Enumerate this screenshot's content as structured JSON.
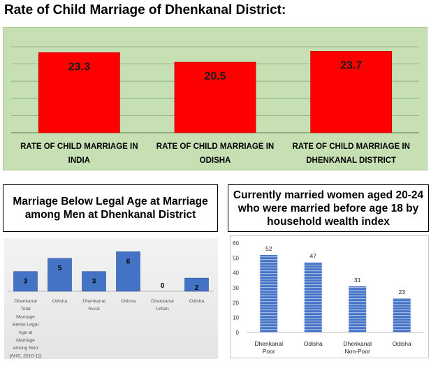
{
  "page": {
    "title": "Rate of Child Marriage of Dhenkanal District:"
  },
  "chart_data": [
    {
      "type": "bar",
      "categories": [
        [
          "RATE OF CHILD MARRIAGE IN",
          "INDIA"
        ],
        [
          "RATE OF CHILD MARRIAGE IN",
          "ODISHA"
        ],
        [
          "RATE OF CHILD MARRIAGE IN",
          "DHENKANAL DISTRICT"
        ]
      ],
      "values": [
        23.3,
        20.5,
        23.7
      ],
      "value_labels": [
        "23.3",
        "20.5",
        "23.7"
      ],
      "ylim": [
        0,
        25
      ],
      "grid": true,
      "colors": {
        "bar": "#ff0000",
        "bar_border": "#c00000",
        "background": "#c6e0b4",
        "grid": "#8aa878"
      }
    },
    {
      "type": "bar",
      "title": "Marriage Below Legal Age at Marriage among Men at Dhenkanal District",
      "categories": [
        [
          "Dhenkanal",
          "Total",
          "Marriage",
          "Below Legal",
          "Age at",
          "Marriage",
          "among Men",
          "[AHS, 2010-11]"
        ],
        [
          "Odisha"
        ],
        [
          "Dhenkanal",
          "Rural"
        ],
        [
          "Odisha"
        ],
        [
          "Dhenkanal",
          "Urban"
        ],
        [
          "Odisha"
        ]
      ],
      "values": [
        3,
        5,
        3,
        6,
        0,
        2
      ],
      "value_labels": [
        "3",
        "5",
        "3",
        "6",
        "0",
        "2"
      ],
      "ylim": [
        0,
        7
      ],
      "colors": {
        "bar": "#4472c4",
        "bar_edge": "#2f5597",
        "label": "#000000"
      }
    },
    {
      "type": "bar",
      "title": "Currently married women aged 20-24 who were married before age 18 by household wealth index",
      "categories": [
        [
          "Dhenkanal",
          "Poor"
        ],
        [
          "Odisha"
        ],
        [
          "Dhenkanal",
          "Non-Poor"
        ],
        [
          "Odisha"
        ]
      ],
      "values": [
        52,
        47,
        31,
        23
      ],
      "value_labels": [
        "52",
        "47",
        "31",
        "23"
      ],
      "ylim": [
        0,
        60
      ],
      "yticks": [
        "0",
        "10",
        "20",
        "30",
        "40",
        "50",
        "60"
      ],
      "grid": false,
      "colors": {
        "bar": "#4472c4",
        "bar_light": "#9fb8e6"
      }
    }
  ]
}
